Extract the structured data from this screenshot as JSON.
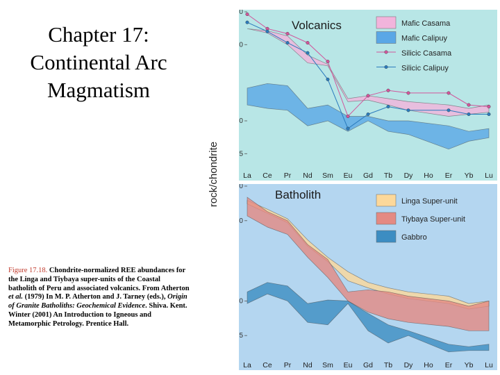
{
  "slide": {
    "title_lines": [
      "Chapter 17:",
      "Continental Arc",
      "Magmatism"
    ],
    "caption": {
      "figure_label": "Figure 17.18.",
      "text_1": " Chondrite-normalized REE abundances for the Linga and Tiybaya super-units of the Coastal batholith of Peru and associated volcanics. From Atherton ",
      "et_al": "et al.",
      "text_2": " (1979) In M. P. Atherton and J. Tarney (eds.), ",
      "book": "Origin of Granite Batholiths: Geochemical Evidence",
      "text_3": ". Shiva. Kent. Winter (2001) An Introduction to Igneous and Metamorphic Petrology. Prentice Hall."
    }
  },
  "chart_data": [
    {
      "type": "area",
      "title": "Volcanics",
      "ylabel": "rock/chondrite",
      "yscale": "log",
      "ylim": [
        3.8,
        100
      ],
      "y_ticks": [
        100,
        50,
        10,
        5
      ],
      "x": [
        "La",
        "Ce",
        "Pr",
        "Nd",
        "Sm",
        "Eu",
        "Gd",
        "Tb",
        "Dy",
        "Ho",
        "Er",
        "Yb",
        "Lu"
      ],
      "bands": [
        {
          "name": "Mafic Casama",
          "color": "#f2b4dc",
          "upper": {
            "La": 70,
            "Ce": 67,
            "Pr": 60,
            "Nd": 40,
            "Sm": 33,
            "Eu": 16,
            "Gd": 17,
            "Tb": 16,
            "Dy": 15,
            "Er": 14,
            "Yb": 13,
            "Lu": 14
          },
          "lower": {
            "La": 70,
            "Ce": 64,
            "Pr": 50,
            "Nd": 34,
            "Sm": 32,
            "Eu": 15,
            "Gd": 15.5,
            "Tb": 14,
            "Dy": 12.5,
            "Er": 11,
            "Yb": 11.5,
            "Lu": 12
          }
        },
        {
          "name": "Mafic Calipuy",
          "color": "#5aa7e6",
          "upper": {
            "La": 20,
            "Ce": 22,
            "Pr": 21,
            "Nd": 13,
            "Sm": 14,
            "Eu": 11,
            "Gd": 11,
            "Tb": 10,
            "Dy": 10,
            "Er": 9,
            "Yb": 8,
            "Lu": 8.5
          },
          "lower": {
            "La": 14,
            "Ce": 13,
            "Pr": 12.5,
            "Nd": 9,
            "Sm": 10,
            "Eu": 8,
            "Gd": 10,
            "Tb": 8,
            "Dy": 7.5,
            "Er": 5.5,
            "Yb": 6.5,
            "Lu": 7
          }
        }
      ],
      "series": [
        {
          "name": "Silicic Casama",
          "color": "#d1559b",
          "x": [
            "La",
            "Ce",
            "Pr",
            "Nd",
            "Sm",
            "Eu",
            "Gd",
            "Tb",
            "Dy",
            "Er",
            "Yb",
            "Lu"
          ],
          "values": [
            95,
            70,
            63,
            52,
            35,
            11,
            17,
            19,
            18,
            18,
            14,
            13.5
          ]
        },
        {
          "name": "Silicic Calipuy",
          "color": "#2b7bbd",
          "x": [
            "La",
            "Ce",
            "Pr",
            "Nd",
            "Sm",
            "Eu",
            "Gd",
            "Tb",
            "Dy",
            "Er",
            "Yb",
            "Lu"
          ],
          "values": [
            80,
            66,
            52,
            42,
            24,
            8.5,
            11.5,
            13.5,
            12.5,
            12.5,
            11.5,
            11.5
          ]
        }
      ],
      "legend": "top-right"
    },
    {
      "type": "area",
      "title": "Batholith",
      "ylabel": "rock/chondrite",
      "yscale": "log",
      "ylim": [
        3.3,
        100
      ],
      "y_ticks": [
        100,
        50,
        10,
        5
      ],
      "x": [
        "La",
        "Ce",
        "Pr",
        "Nd",
        "Sm",
        "Eu",
        "Gd",
        "Tb",
        "Dy",
        "Ho",
        "Er",
        "Yb",
        "Lu"
      ],
      "bands": [
        {
          "name": "Linga Super-unit",
          "color": "#fcd89a",
          "upper": {
            "La": 75,
            "Ce": 63,
            "Pr": 52,
            "Nd": 34,
            "Sm": 24,
            "Eu": 18,
            "Gd": 14.5,
            "Tb": 13,
            "Dy": 12,
            "Er": 11,
            "Yb": 9.5,
            "Lu": 10
          },
          "lower": {
            "La": 70,
            "Ce": 58,
            "Pr": 48,
            "Nd": 30,
            "Sm": 22,
            "Eu": 15,
            "Gd": 13,
            "Tb": 11.5,
            "Dy": 10.5,
            "Er": 9.5,
            "Yb": 8.5,
            "Lu": 9
          }
        },
        {
          "name": "Tiybaya Super-unit",
          "color": "#e48a83",
          "upper": {
            "La": 80,
            "Ce": 60,
            "Pr": 50,
            "Nd": 31,
            "Sm": 23,
            "Eu": 12,
            "Gd": 12.5,
            "Tb": 12,
            "Dy": 11,
            "Er": 10,
            "Yb": 9,
            "Lu": 10
          },
          "lower": {
            "La": 55,
            "Ce": 44,
            "Pr": 38,
            "Nd": 24,
            "Sm": 16,
            "Eu": 10,
            "Gd": 8,
            "Tb": 7,
            "Dy": 6.5,
            "Er": 6,
            "Yb": 5.5,
            "Lu": 5.5
          }
        },
        {
          "name": "Gabbro",
          "color": "#3c8dc2",
          "upper": {
            "La": 12,
            "Ce": 14.5,
            "Pr": 13.5,
            "Nd": 9.5,
            "Sm": 10.2,
            "Eu": 10,
            "Gd": 7.8,
            "Tb": 6.2,
            "Dy": 5.5,
            "Er": 4.2,
            "Yb": 4,
            "Lu": 4.2
          },
          "lower": {
            "La": 9.5,
            "Ce": 11.5,
            "Pr": 10,
            "Nd": 6.5,
            "Sm": 6.2,
            "Eu": 9.5,
            "Gd": 5.5,
            "Tb": 4.3,
            "Dy": 5,
            "Er": 3.6,
            "Yb": 3.7,
            "Lu": 3.7
          }
        }
      ],
      "legend": "top-right"
    }
  ]
}
